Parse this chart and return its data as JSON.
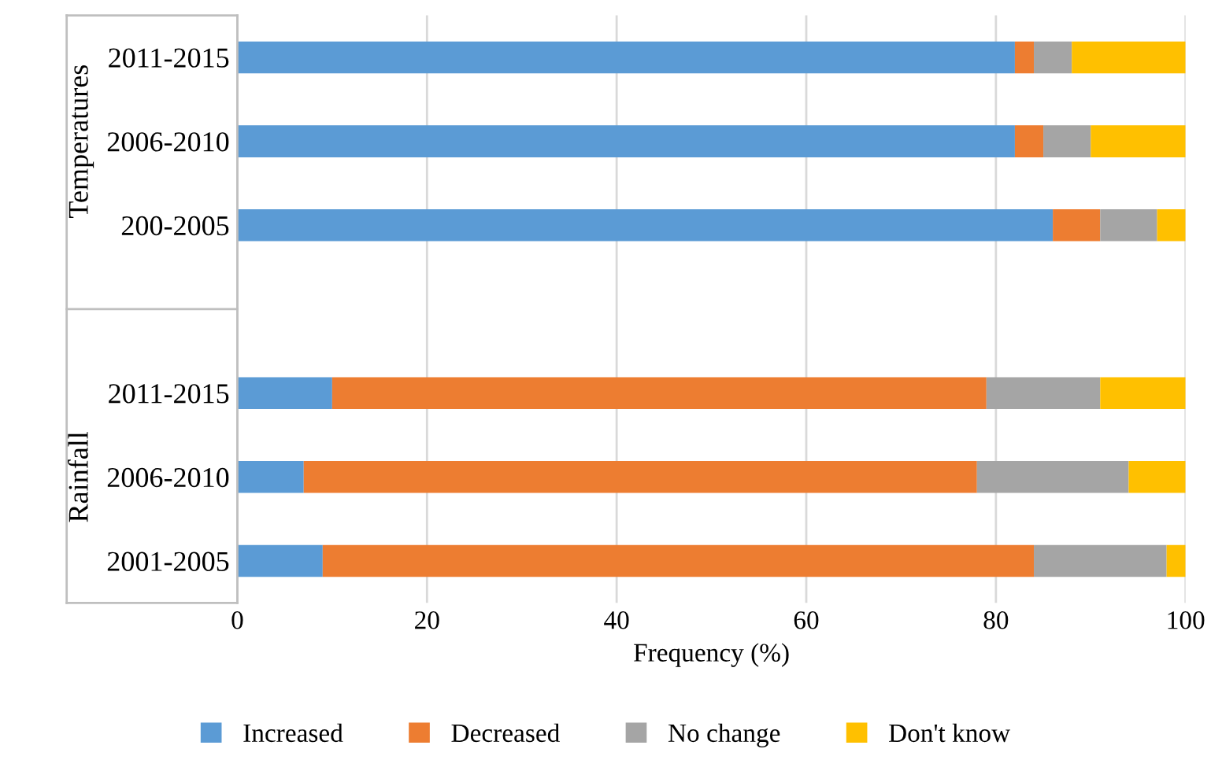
{
  "chart_data": {
    "type": "bar",
    "orientation": "horizontal",
    "stacked": true,
    "categories": [
      "2011-2015",
      "2006-2010",
      "200-2005",
      null,
      "2011-2015",
      "2006-2010",
      "2001-2005"
    ],
    "series": [
      {
        "name": "Increased",
        "color": "#5b9bd5",
        "values": [
          82,
          82,
          86,
          null,
          10,
          7,
          9
        ]
      },
      {
        "name": "Decreased",
        "color": "#ed7d31",
        "values": [
          2,
          3,
          5,
          null,
          69,
          71,
          75
        ]
      },
      {
        "name": "No change",
        "color": "#a5a5a5",
        "values": [
          4,
          5,
          6,
          null,
          12,
          16,
          14
        ]
      },
      {
        "name": "Don't know",
        "color": "#ffc000",
        "values": [
          12,
          10,
          3,
          null,
          9,
          6,
          2
        ]
      }
    ],
    "annotations": [
      "Temperatures",
      "Rainfall"
    ],
    "xlabel": "Frequency (%)",
    "xlim": [
      0,
      100
    ],
    "xticks": [
      0,
      20,
      40,
      60,
      80,
      100
    ],
    "grid": "x",
    "legend": "bottom"
  }
}
